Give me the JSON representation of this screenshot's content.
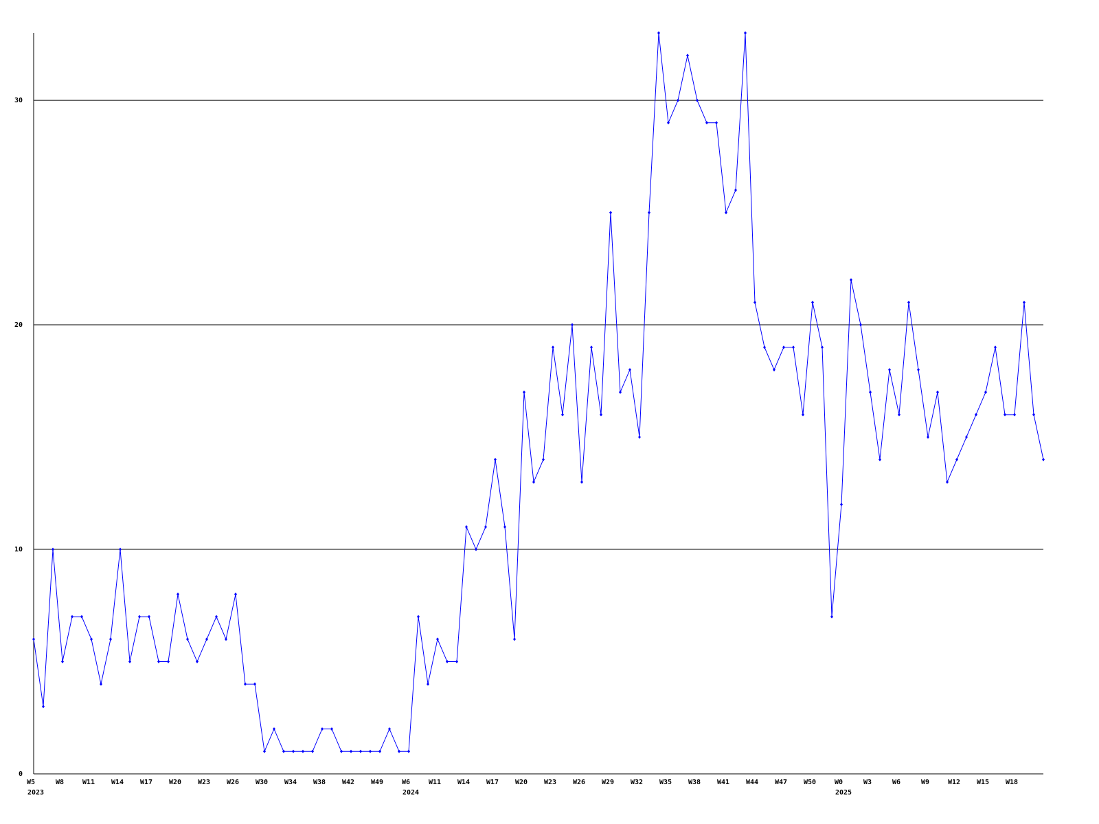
{
  "chart_data": {
    "type": "line",
    "categories": [
      "W5",
      null,
      null,
      "W8",
      null,
      null,
      "W11",
      null,
      null,
      "W14",
      null,
      null,
      "W17",
      null,
      null,
      "W20",
      null,
      null,
      "W23",
      null,
      null,
      "W26",
      null,
      null,
      "W30",
      null,
      null,
      "W34",
      null,
      null,
      "W38",
      null,
      null,
      "W42",
      null,
      null,
      "W49",
      null,
      null,
      "W6",
      null,
      null,
      "W11",
      null,
      null,
      "W14",
      null,
      null,
      "W17",
      null,
      null,
      "W20",
      null,
      null,
      "W23",
      null,
      null,
      "W26",
      null,
      null,
      "W29",
      null,
      null,
      "W32",
      null,
      null,
      "W35",
      null,
      null,
      "W38",
      null,
      null,
      "W41",
      null,
      null,
      "W44",
      null,
      null,
      "W47",
      null,
      null,
      "W50",
      null,
      null,
      "W0",
      null,
      null,
      "W3",
      null,
      null,
      "W6",
      null,
      null,
      "W9",
      null,
      null,
      "W12",
      null,
      null,
      "W15",
      null,
      null,
      "W18",
      null,
      null,
      null
    ],
    "years": [
      "2023",
      null,
      null,
      null,
      null,
      null,
      null,
      null,
      null,
      null,
      null,
      null,
      null,
      null,
      null,
      null,
      null,
      null,
      null,
      null,
      null,
      null,
      null,
      null,
      null,
      null,
      null,
      null,
      null,
      null,
      null,
      null,
      null,
      null,
      null,
      null,
      null,
      null,
      null,
      "2024",
      null,
      null,
      null,
      null,
      null,
      null,
      null,
      null,
      null,
      null,
      null,
      null,
      null,
      null,
      null,
      null,
      null,
      null,
      null,
      null,
      null,
      null,
      null,
      null,
      null,
      null,
      null,
      null,
      null,
      null,
      null,
      null,
      null,
      null,
      null,
      null,
      null,
      null,
      null,
      null,
      null,
      null,
      null,
      null,
      "2025",
      null,
      null,
      null,
      null,
      null,
      null,
      null,
      null,
      null,
      null,
      null,
      null,
      null,
      null,
      null,
      null,
      null,
      null,
      null,
      null,
      null
    ],
    "values": [
      6,
      3,
      10,
      5,
      7,
      7,
      6,
      4,
      6,
      10,
      5,
      7,
      7,
      5,
      5,
      8,
      6,
      5,
      6,
      7,
      6,
      8,
      4,
      4,
      1,
      2,
      1,
      1,
      1,
      1,
      2,
      2,
      1,
      1,
      1,
      1,
      1,
      2,
      1,
      1,
      7,
      4,
      6,
      5,
      5,
      11,
      10,
      11,
      14,
      11,
      6,
      17,
      13,
      14,
      19,
      16,
      20,
      13,
      19,
      16,
      25,
      17,
      18,
      15,
      25,
      33,
      29,
      30,
      32,
      30,
      29,
      29,
      25,
      26,
      33,
      21,
      19,
      18,
      19,
      19,
      16,
      21,
      19,
      7,
      12,
      22,
      20,
      17,
      14,
      18,
      16,
      21,
      18,
      15,
      17,
      13,
      14,
      15,
      16,
      17,
      19,
      16,
      16,
      21,
      16,
      14
    ],
    "color": "#0000ff",
    "ylim": [
      0,
      33
    ],
    "yticks": [
      0,
      10,
      20,
      30
    ],
    "grid": true
  }
}
